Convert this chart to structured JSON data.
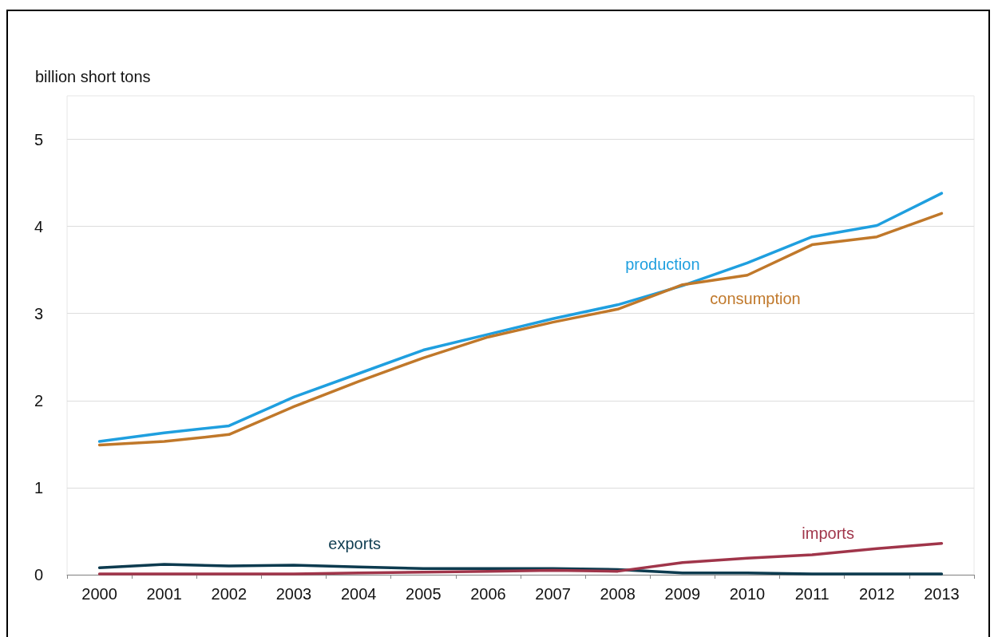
{
  "chart_data": {
    "type": "line",
    "ylabel": "billion short tons",
    "categories": [
      "2000",
      "2001",
      "2002",
      "2003",
      "2004",
      "2005",
      "2006",
      "2007",
      "2008",
      "2009",
      "2010",
      "2011",
      "2012",
      "2013"
    ],
    "series": [
      {
        "name": "production",
        "color": "#1f9fdf",
        "values": [
          1.53,
          1.63,
          1.71,
          2.04,
          2.31,
          2.58,
          2.76,
          2.94,
          3.1,
          3.32,
          3.58,
          3.88,
          4.01,
          4.38
        ]
      },
      {
        "name": "consumption",
        "color": "#c0782a",
        "values": [
          1.49,
          1.53,
          1.61,
          1.93,
          2.22,
          2.49,
          2.73,
          2.9,
          3.05,
          3.33,
          3.44,
          3.79,
          3.88,
          4.15
        ]
      },
      {
        "name": "exports",
        "color": "#0d3b4f",
        "values": [
          0.08,
          0.12,
          0.1,
          0.11,
          0.09,
          0.07,
          0.07,
          0.07,
          0.06,
          0.02,
          0.02,
          0.01,
          0.01,
          0.01
        ]
      },
      {
        "name": "imports",
        "color": "#a0354a",
        "values": [
          0.01,
          0.01,
          0.01,
          0.01,
          0.02,
          0.03,
          0.04,
          0.05,
          0.04,
          0.14,
          0.19,
          0.23,
          0.3,
          0.36
        ]
      }
    ],
    "ylim": [
      0,
      5.5
    ],
    "yticks": [
      0,
      1,
      2,
      3,
      4,
      5
    ],
    "grid": "y",
    "legend": false,
    "marker": "none",
    "line_style": "solid"
  }
}
